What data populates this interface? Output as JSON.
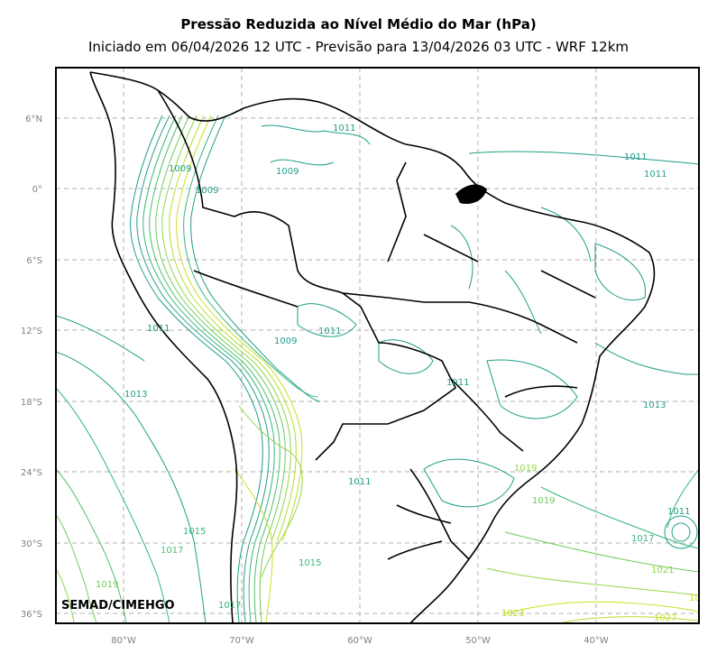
{
  "header": {
    "title": "Pressão Reduzida ao Nível Médio do Mar (hPa)",
    "subtitle": "Iniciado em 06/04/2026 12 UTC - Previsão para 13/04/2026 03 UTC - WRF 12km"
  },
  "map": {
    "credit": "SEMAD/CIMEHGO",
    "lat_ticks": [
      "6°N",
      "0°",
      "6°S",
      "12°S",
      "18°S",
      "24°S",
      "30°S",
      "36°S"
    ],
    "lon_ticks": [
      "80°W",
      "70°W",
      "60°W",
      "50°W",
      "40°W"
    ],
    "grid": true,
    "colors": {
      "low": "#1f9e89",
      "mid": "#35b779",
      "high": "#90d743",
      "veryhigh": "#c8e020",
      "coast": "#000000",
      "grid": "#b0b0b0"
    },
    "contour_labels": [
      "1011",
      "1011",
      "1009",
      "1009",
      "1009",
      "1011",
      "1009",
      "1011",
      "1011",
      "1013",
      "1011",
      "1013",
      "1011",
      "1011",
      "1019",
      "1019",
      "1015",
      "1017",
      "1017",
      "1019",
      "1015",
      "1021",
      "1017",
      "1023",
      "1027",
      "10"
    ]
  }
}
